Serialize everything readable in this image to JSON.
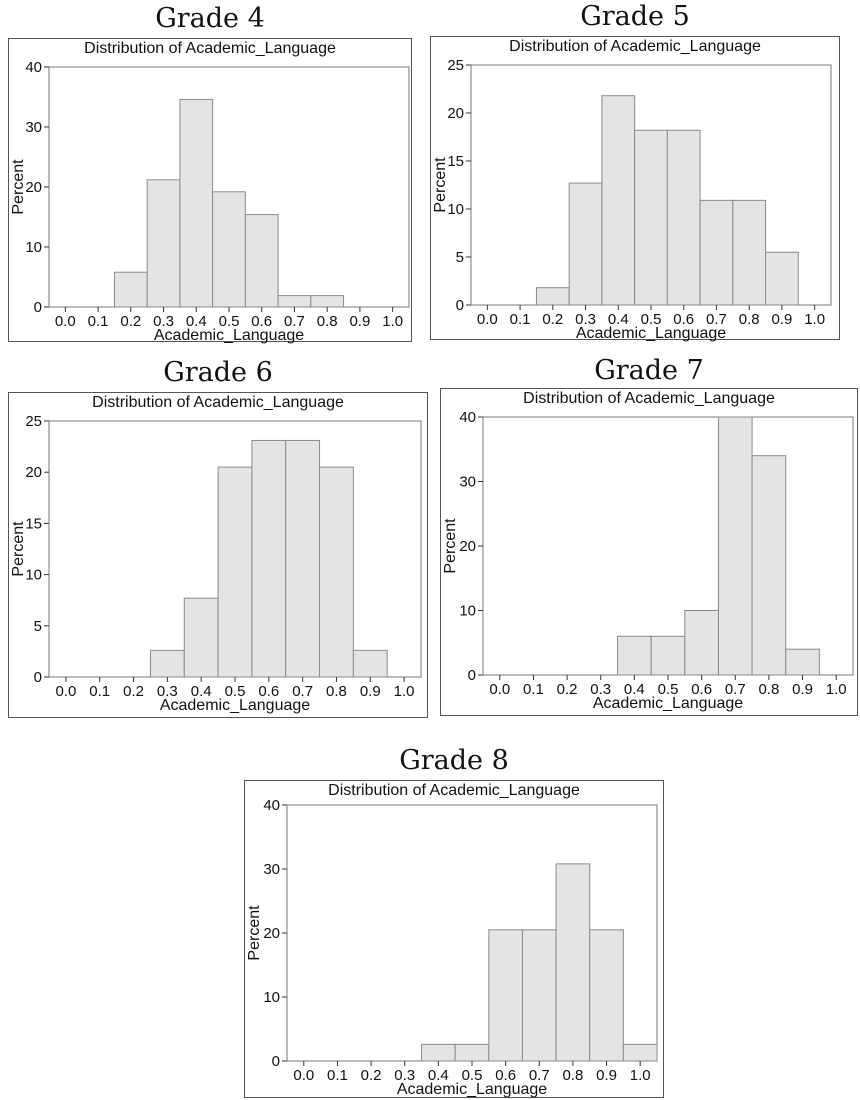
{
  "chart_data": [
    {
      "type": "bar",
      "panel_title": "Grade 4",
      "title": "Distribution of Academic_Language",
      "xlabel": "Academic_Language",
      "ylabel": "Percent",
      "x_ticks": [
        "0.0",
        "0.1",
        "0.2",
        "0.3",
        "0.4",
        "0.5",
        "0.6",
        "0.7",
        "0.8",
        "0.9",
        "1.0"
      ],
      "y_ticks": [
        "0",
        "10",
        "20",
        "30",
        "40"
      ],
      "ylim": [
        0,
        40
      ],
      "xlim": [
        -0.05,
        1.05
      ],
      "bin_width": 0.1,
      "bins": [
        {
          "center": 0.2,
          "value": 5.8
        },
        {
          "center": 0.3,
          "value": 21.2
        },
        {
          "center": 0.4,
          "value": 34.6
        },
        {
          "center": 0.5,
          "value": 19.2
        },
        {
          "center": 0.6,
          "value": 15.4
        },
        {
          "center": 0.7,
          "value": 1.9
        },
        {
          "center": 0.8,
          "value": 1.9
        }
      ]
    },
    {
      "type": "bar",
      "panel_title": "Grade 5",
      "title": "Distribution of Academic_Language",
      "xlabel": "Academic_Language",
      "ylabel": "Percent",
      "x_ticks": [
        "0.0",
        "0.1",
        "0.2",
        "0.3",
        "0.4",
        "0.5",
        "0.6",
        "0.7",
        "0.8",
        "0.9",
        "1.0"
      ],
      "y_ticks": [
        "0",
        "5",
        "10",
        "15",
        "20",
        "25"
      ],
      "ylim": [
        0,
        25
      ],
      "xlim": [
        -0.05,
        1.05
      ],
      "bin_width": 0.1,
      "bins": [
        {
          "center": 0.2,
          "value": 1.8
        },
        {
          "center": 0.3,
          "value": 12.7
        },
        {
          "center": 0.4,
          "value": 21.8
        },
        {
          "center": 0.5,
          "value": 18.2
        },
        {
          "center": 0.6,
          "value": 18.2
        },
        {
          "center": 0.7,
          "value": 10.9
        },
        {
          "center": 0.8,
          "value": 10.9
        },
        {
          "center": 0.9,
          "value": 5.5
        }
      ]
    },
    {
      "type": "bar",
      "panel_title": "Grade 6",
      "title": "Distribution of Academic_Language",
      "xlabel": "Academic_Language",
      "ylabel": "Percent",
      "x_ticks": [
        "0.0",
        "0.1",
        "0.2",
        "0.3",
        "0.4",
        "0.5",
        "0.6",
        "0.7",
        "0.8",
        "0.9",
        "1.0"
      ],
      "y_ticks": [
        "0",
        "5",
        "10",
        "15",
        "20",
        "25"
      ],
      "ylim": [
        0,
        25
      ],
      "xlim": [
        -0.05,
        1.05
      ],
      "bin_width": 0.1,
      "bins": [
        {
          "center": 0.3,
          "value": 2.6
        },
        {
          "center": 0.4,
          "value": 7.7
        },
        {
          "center": 0.5,
          "value": 20.5
        },
        {
          "center": 0.6,
          "value": 23.1
        },
        {
          "center": 0.7,
          "value": 23.1
        },
        {
          "center": 0.8,
          "value": 20.5
        },
        {
          "center": 0.9,
          "value": 2.6
        }
      ]
    },
    {
      "type": "bar",
      "panel_title": "Grade 7",
      "title": "Distribution of Academic_Language",
      "xlabel": "Academic_Language",
      "ylabel": "Percent",
      "x_ticks": [
        "0.0",
        "0.1",
        "0.2",
        "0.3",
        "0.4",
        "0.5",
        "0.6",
        "0.7",
        "0.8",
        "0.9",
        "1.0"
      ],
      "y_ticks": [
        "0",
        "10",
        "20",
        "30",
        "40"
      ],
      "ylim": [
        0,
        40
      ],
      "xlim": [
        -0.05,
        1.05
      ],
      "bin_width": 0.1,
      "bins": [
        {
          "center": 0.4,
          "value": 6.0
        },
        {
          "center": 0.5,
          "value": 6.0
        },
        {
          "center": 0.6,
          "value": 10.0
        },
        {
          "center": 0.7,
          "value": 40.0
        },
        {
          "center": 0.8,
          "value": 34.0
        },
        {
          "center": 0.9,
          "value": 4.0
        }
      ]
    },
    {
      "type": "bar",
      "panel_title": "Grade 8",
      "title": "Distribution of Academic_Language",
      "xlabel": "Academic_Language",
      "ylabel": "Percent",
      "x_ticks": [
        "0.0",
        "0.1",
        "0.2",
        "0.3",
        "0.4",
        "0.5",
        "0.6",
        "0.7",
        "0.8",
        "0.9",
        "1.0"
      ],
      "y_ticks": [
        "0",
        "10",
        "20",
        "30",
        "40"
      ],
      "ylim": [
        0,
        40
      ],
      "xlim": [
        -0.05,
        1.05
      ],
      "bin_width": 0.1,
      "bins": [
        {
          "center": 0.4,
          "value": 2.6
        },
        {
          "center": 0.5,
          "value": 2.6
        },
        {
          "center": 0.6,
          "value": 20.5
        },
        {
          "center": 0.7,
          "value": 20.5
        },
        {
          "center": 0.8,
          "value": 30.8
        },
        {
          "center": 0.9,
          "value": 20.5
        },
        {
          "center": 1.0,
          "value": 2.6
        }
      ]
    }
  ],
  "colors": {
    "bar_fill": "#e4e4e4",
    "bar_stroke": "#8a8a8a",
    "frame": "#555555"
  }
}
